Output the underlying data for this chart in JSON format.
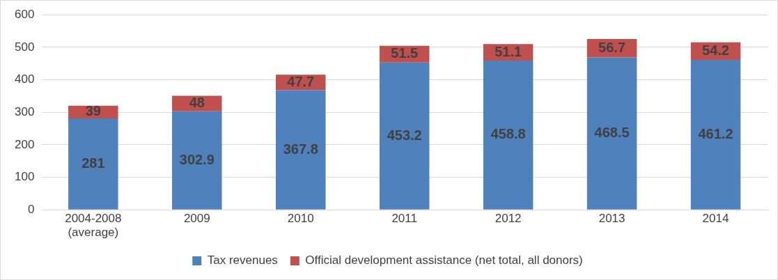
{
  "chart_data": {
    "type": "bar",
    "stacked": true,
    "categories": [
      "2004-2008 (average)",
      "2009",
      "2010",
      "2011",
      "2012",
      "2013",
      "2014"
    ],
    "series": [
      {
        "name": "Tax revenues",
        "color": "#4f81bd",
        "values": [
          281,
          302.9,
          367.8,
          453.2,
          458.8,
          468.5,
          461.2
        ]
      },
      {
        "name": "Official development assistance (net total, all donors)",
        "color": "#c0504d",
        "values": [
          39,
          48,
          47.7,
          51.5,
          51.1,
          56.7,
          54.2
        ]
      }
    ],
    "ylim": [
      0,
      600
    ],
    "yticks": [
      0,
      100,
      200,
      300,
      400,
      500,
      600
    ],
    "grid": "y",
    "legend": "bottom",
    "data_labels": true
  }
}
